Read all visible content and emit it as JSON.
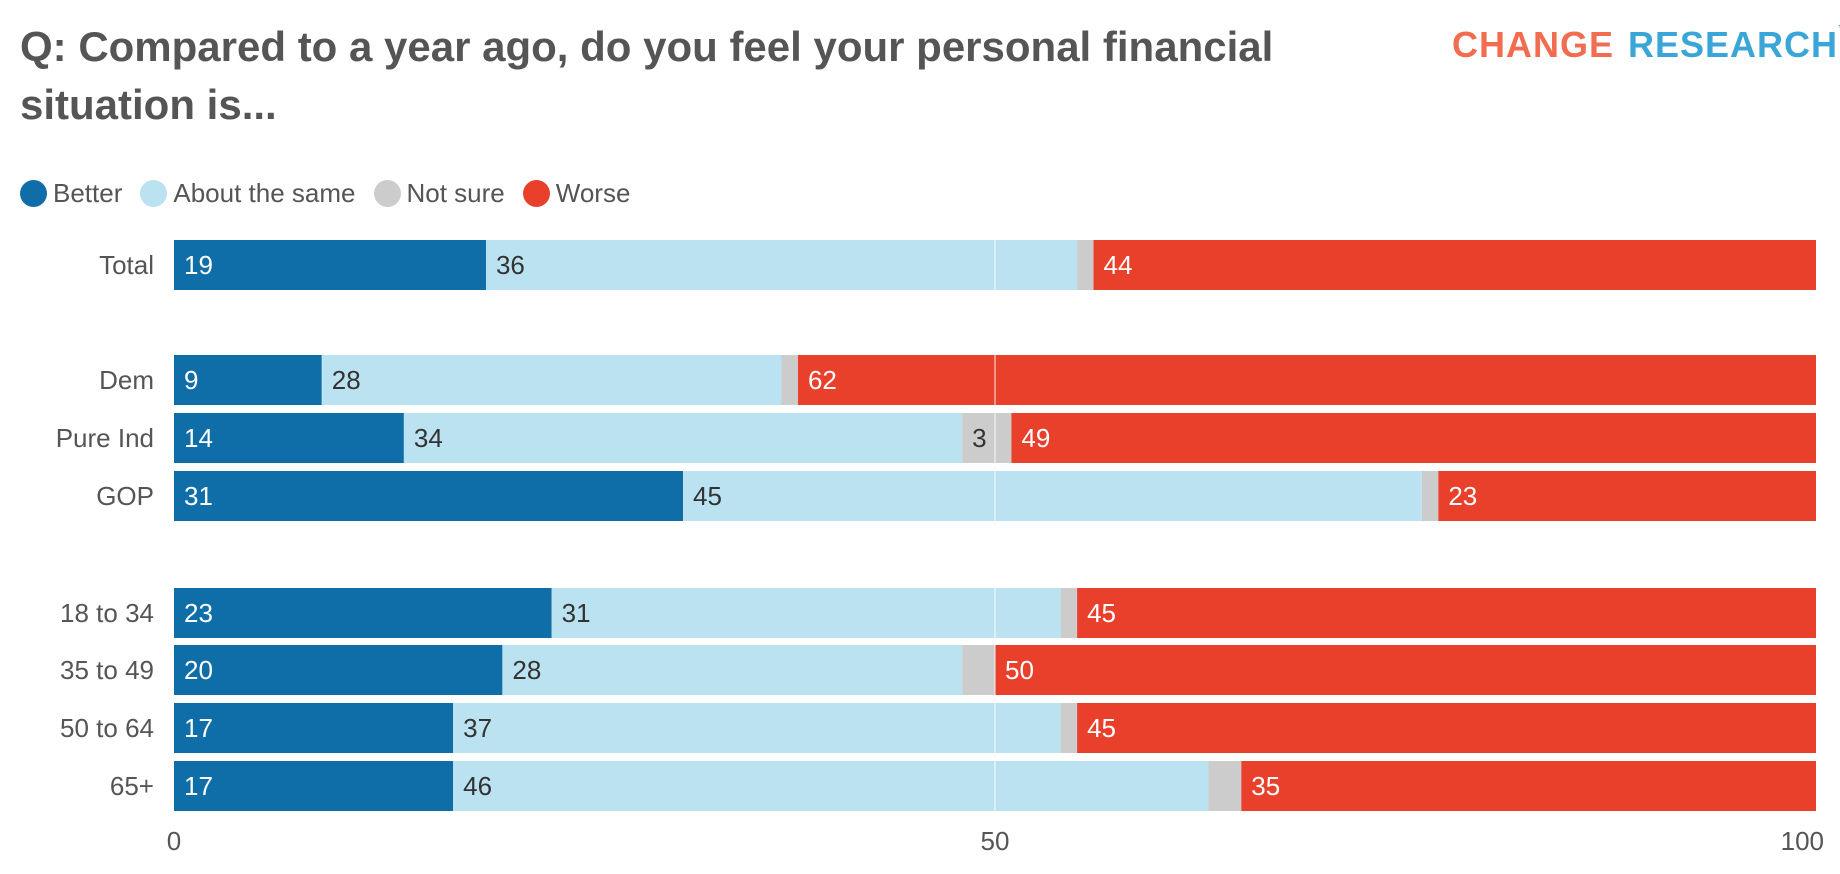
{
  "chart_data": {
    "type": "bar",
    "orientation": "horizontal",
    "stacked": true,
    "title": "Q: Compared to a year ago, do you feel your personal financial situation is...",
    "logo": "CHANGE RESEARCH",
    "categories": [
      "Total",
      "Dem",
      "Pure Ind",
      "GOP",
      "18 to 34",
      "35 to 49",
      "50 to 64",
      "65+"
    ],
    "groups": [
      [
        0
      ],
      [
        1,
        2,
        3
      ],
      [
        4,
        5,
        6,
        7
      ]
    ],
    "series": [
      {
        "name": "Better",
        "color": "#0f6ea8",
        "label_color": "#ffffff",
        "values": [
          19,
          9,
          14,
          31,
          23,
          20,
          17,
          17
        ],
        "labeled": [
          true,
          true,
          true,
          true,
          true,
          true,
          true,
          true
        ]
      },
      {
        "name": "About the same",
        "color": "#bbe2f0",
        "label_color": "#333333",
        "values": [
          36,
          28,
          34,
          45,
          31,
          28,
          37,
          46
        ],
        "labeled": [
          true,
          true,
          true,
          true,
          true,
          true,
          true,
          true
        ]
      },
      {
        "name": "Not sure",
        "color": "#cccccc",
        "label_color": "#333333",
        "values": [
          1,
          1,
          3,
          1,
          1,
          2,
          1,
          2
        ],
        "labeled": [
          false,
          false,
          true,
          false,
          false,
          false,
          false,
          false
        ]
      },
      {
        "name": "Worse",
        "color": "#e9402c",
        "label_color": "#ffffff",
        "values": [
          44,
          62,
          49,
          23,
          45,
          50,
          45,
          35
        ],
        "labeled": [
          true,
          true,
          true,
          true,
          true,
          true,
          true,
          true
        ]
      }
    ],
    "xlim": [
      0,
      100
    ],
    "xticks": [
      "0",
      "50",
      "100"
    ],
    "gridline_at": 50,
    "legend_position": "top-left"
  }
}
